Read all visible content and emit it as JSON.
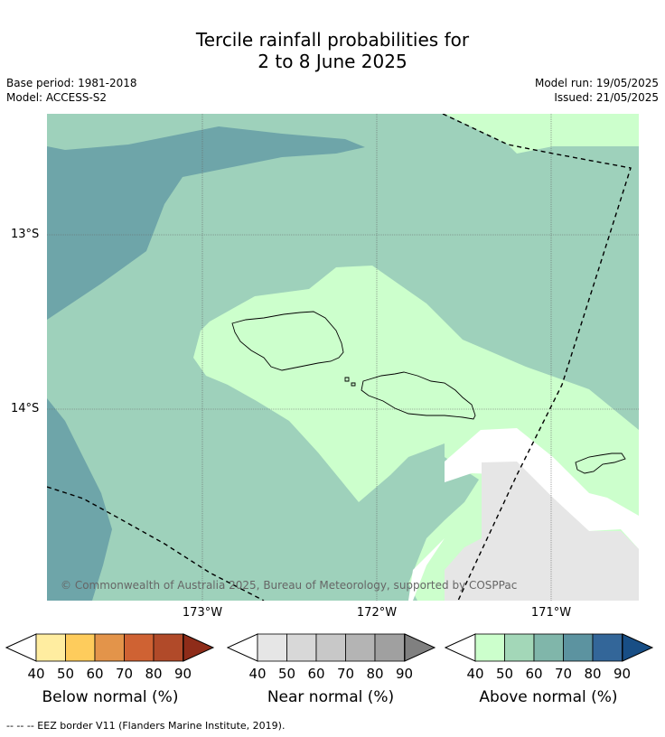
{
  "header": {
    "title_line1": "Tercile rainfall probabilities for",
    "title_line2": "2 to 8 June 2025",
    "base_period": "Base period: 1981-2018",
    "model": "Model: ACCESS-S2",
    "model_run": "Model run: 19/05/2025",
    "issued": "Issued: 21/05/2025"
  },
  "axes": {
    "lat_labels": [
      "13°S",
      "14°S"
    ],
    "lon_labels": [
      "173°W",
      "172°W",
      "171°W"
    ]
  },
  "credit": "© Commonwealth of Australia 2025, Bureau of Meteorology, supported by COSPPac",
  "colors": {
    "below": [
      "#ffeda0",
      "#fecc5c",
      "#e3944a",
      "#cf6233",
      "#b14a29",
      "#8e2c19"
    ],
    "near": [
      "#e6e6e6",
      "#d8d8d8",
      "#c8c8c8",
      "#b4b4b4",
      "#a0a0a0",
      "#808080"
    ],
    "above": [
      "#ccffcc",
      "#a3d7b8",
      "#80b6aa",
      "#5c93a0",
      "#336699",
      "#184e85"
    ],
    "map_green_light": "#ccffcc",
    "map_green_mid": "#9ed1bb",
    "map_teal": "#6ea5a9",
    "map_gray": "#e6e6e6"
  },
  "legend": {
    "ticks": [
      "40",
      "50",
      "60",
      "70",
      "80",
      "90"
    ],
    "below_title": "Below normal (%)",
    "near_title": "Near normal (%)",
    "above_title": "Above normal (%)"
  },
  "footer": "--  --  -- EEZ border V11 (Flanders Marine Institute, 2019)."
}
